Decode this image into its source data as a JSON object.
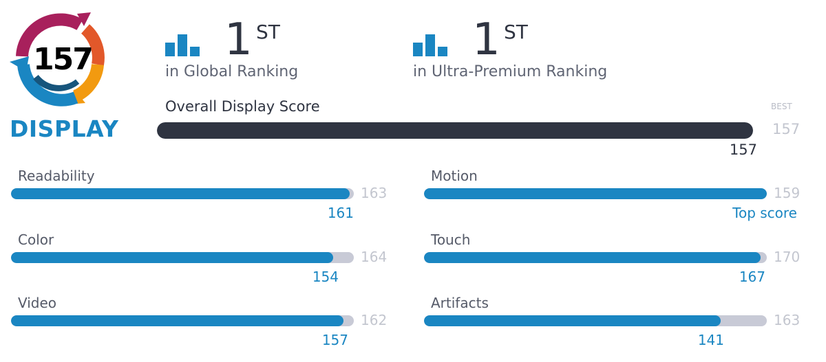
{
  "badge": {
    "score": "157",
    "label": "DISPLAY",
    "colors": [
      "#a8205c",
      "#e2582a",
      "#f29a10",
      "#1a86c2",
      "#17557c"
    ]
  },
  "rankings": [
    {
      "icon": "bar-chart-icon",
      "position": "1",
      "suffix": "ST",
      "label": "in Global Ranking"
    },
    {
      "icon": "bar-chart-icon",
      "position": "1",
      "suffix": "ST",
      "label": "in Ultra-Premium Ranking"
    }
  ],
  "overall": {
    "title": "Overall Display Score",
    "best_label": "BEST",
    "best": "157",
    "value": "157",
    "fraction": 1.0
  },
  "metrics": [
    {
      "label": "Readability",
      "best": "163",
      "value": "161",
      "fraction": 0.988
    },
    {
      "label": "Motion",
      "best": "159",
      "value": "Top score",
      "fraction": 1.0
    },
    {
      "label": "Color",
      "best": "164",
      "value": "154",
      "fraction": 0.939
    },
    {
      "label": "Touch",
      "best": "170",
      "value": "167",
      "fraction": 0.982
    },
    {
      "label": "Video",
      "best": "162",
      "value": "157",
      "fraction": 0.969
    },
    {
      "label": "Artifacts",
      "best": "163",
      "value": "141",
      "fraction": 0.865
    }
  ],
  "colors": {
    "accent": "#1a86c2",
    "dark": "#2f3441",
    "track": "#c8cad6",
    "muted": "#c3c6cf"
  }
}
